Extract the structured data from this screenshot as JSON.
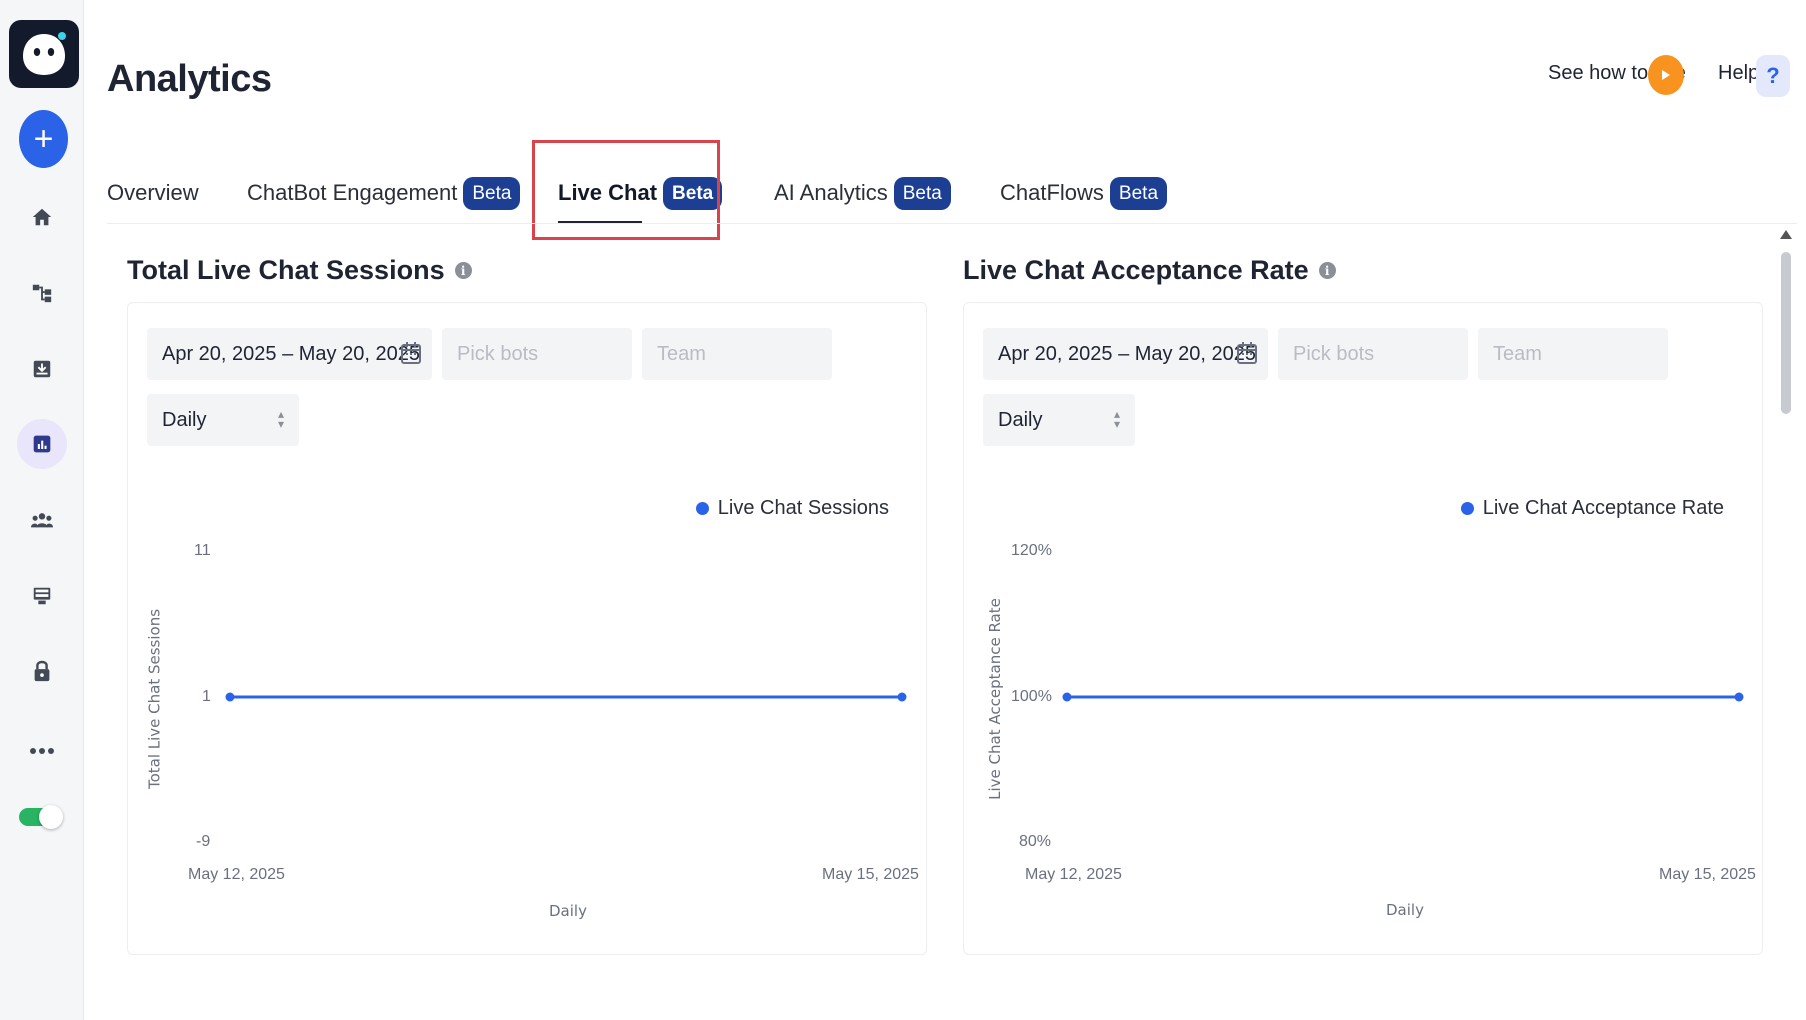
{
  "sidebar": {
    "logo_icon": "chatbot-face-icon",
    "add_icon": "plus-icon",
    "items": [
      {
        "name": "home",
        "icon": "home-icon"
      },
      {
        "name": "flows",
        "icon": "flow-icon"
      },
      {
        "name": "inbox",
        "icon": "download-tray-icon"
      },
      {
        "name": "analytics",
        "icon": "bar-chart-icon",
        "active": true
      },
      {
        "name": "team",
        "icon": "users-icon"
      },
      {
        "name": "kiosk",
        "icon": "monitor-icon"
      },
      {
        "name": "security",
        "icon": "lock-icon"
      },
      {
        "name": "more",
        "icon": "more-horizontal-icon"
      }
    ],
    "toggle_on": true,
    "toggle_color": "#28b463"
  },
  "header": {
    "title": "Analytics",
    "see_how_label": "See how to use",
    "help_label": "Help",
    "help_icon_glyph": "?"
  },
  "tabs": [
    {
      "label": "Overview",
      "badge": ""
    },
    {
      "label": "ChatBot Engagement",
      "badge": "Beta"
    },
    {
      "label": "Live Chat",
      "badge": "Beta",
      "active": true
    },
    {
      "label": "AI Analytics",
      "badge": "Beta"
    },
    {
      "label": "ChatFlows",
      "badge": "Beta"
    }
  ],
  "colors": {
    "accent": "#2a63e8",
    "badge": "#1c3f94",
    "highlight": "#d9434b",
    "play": "#f7931e"
  },
  "panels": [
    {
      "title": "Total Live Chat Sessions",
      "date_range": "Apr 20, 2025 – May 20, 2025",
      "bots_placeholder": "Pick bots",
      "team_placeholder": "Team",
      "interval": "Daily"
    },
    {
      "title": "Live Chat Acceptance Rate",
      "date_range": "Apr 20, 2025 – May 20, 2025",
      "bots_placeholder": "Pick bots",
      "team_placeholder": "Team",
      "interval": "Daily"
    }
  ],
  "chart_data": [
    {
      "type": "line",
      "title": "",
      "xlabel": "Daily",
      "ylabel": "Total Live Chat Sessions",
      "x": [
        "May 12, 2025",
        "May 15, 2025"
      ],
      "series": [
        {
          "name": "Live Chat Sessions",
          "values": [
            1,
            1
          ]
        }
      ],
      "y_ticks": [
        "11",
        "1",
        "-9"
      ],
      "ylim": [
        -9,
        11
      ],
      "legend": "top-right",
      "grid": false
    },
    {
      "type": "line",
      "title": "",
      "xlabel": "Daily",
      "ylabel": "Live Chat Acceptance Rate",
      "x": [
        "May 12, 2025",
        "May 15, 2025"
      ],
      "series": [
        {
          "name": "Live Chat Acceptance Rate",
          "values": [
            100,
            100
          ]
        }
      ],
      "y_ticks": [
        "120%",
        "100%",
        "80%"
      ],
      "ylim": [
        80,
        120
      ],
      "legend": "top-right",
      "grid": false
    }
  ]
}
